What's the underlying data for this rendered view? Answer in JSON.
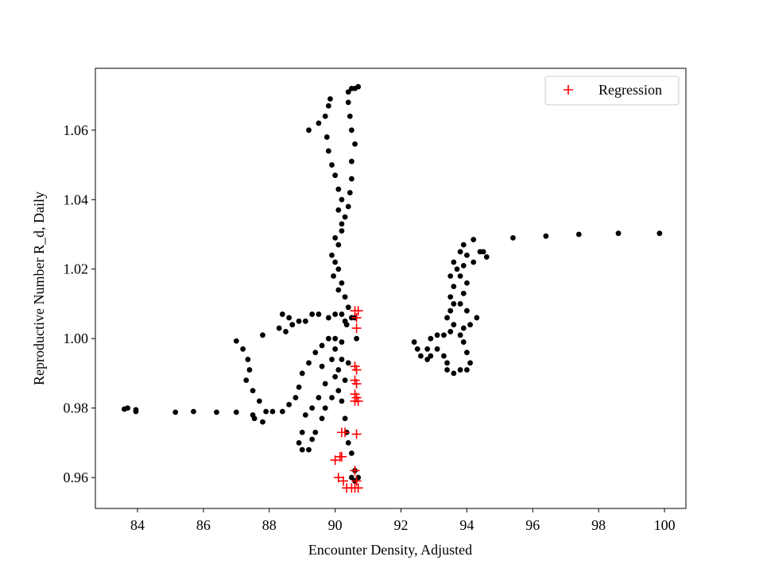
{
  "chart_data": {
    "type": "scatter",
    "xlabel": "Encounter Density, Adjusted",
    "ylabel": "Reproductive Number R_d, Daily",
    "xlim": [
      82.72,
      100.65
    ],
    "ylim": [
      0.9511,
      1.0778
    ],
    "xticks": [
      84,
      86,
      88,
      90,
      92,
      94,
      96,
      98,
      100
    ],
    "yticks": [
      0.96,
      0.98,
      {
        "value": 1,
        "label": "1.00"
      },
      1.02,
      1.04,
      1.06
    ],
    "legend": "upper right",
    "series": [
      {
        "color": "#000000",
        "marker": "dot",
        "x": [
          95.4,
          96.4,
          97.4,
          98.6,
          99.85,
          94.6,
          94.4,
          94.2,
          93.9,
          93.8,
          94.0,
          93.6,
          93.7,
          93.5,
          93.6,
          93.5,
          93.6,
          93.5,
          93.4,
          93.6,
          93.5,
          93.3,
          93.1,
          92.9,
          92.8,
          92.6,
          92.4,
          92.5,
          92.8,
          92.9,
          93.1,
          93.3,
          93.4,
          93.4,
          93.6,
          93.8,
          94.0,
          94.1,
          94.0,
          93.9,
          93.8,
          93.9,
          94.1,
          94.3,
          94.0,
          93.8,
          93.9,
          94.0,
          93.8,
          93.9,
          94.2,
          94.5,
          83.6,
          83.7,
          83.95,
          83.95,
          85.15,
          85.7,
          86.4,
          87.0,
          87.5,
          87.55,
          87.8,
          87.9,
          88.1,
          87.0,
          87.2,
          87.35,
          87.4,
          87.3,
          87.5,
          87.7,
          87.8,
          88.3,
          88.5,
          88.4,
          88.6,
          88.7,
          88.9,
          89.1,
          89.3,
          89.2,
          89.5,
          89.7,
          89.8,
          89.85,
          89.75,
          89.8,
          89.9,
          90.0,
          90.1,
          90.2,
          90.1,
          90.2,
          90.0,
          89.9,
          90.1,
          90.2,
          90.3,
          90.4,
          90.5,
          90.35,
          90.4,
          90.5,
          90.6,
          90.7,
          90.4,
          90.45,
          90.5,
          90.6,
          90.5,
          90.5,
          90.45,
          90.4,
          90.3,
          90.2,
          90.1,
          90.0,
          89.95,
          90.1,
          90.3,
          90.35,
          90.4,
          90.5,
          90.6,
          90.5,
          90.6,
          90.7,
          89.0,
          88.9,
          89.0,
          89.2,
          89.3,
          89.4,
          89.6,
          89.7,
          89.9,
          90.1,
          90.3,
          90.1,
          89.9,
          90.0,
          90.2,
          89.8,
          89.6,
          89.4,
          89.2,
          89.0,
          88.9,
          88.8,
          88.6,
          88.4,
          89.1,
          89.3,
          89.5,
          89.7,
          90.0,
          90.2,
          90.0,
          90.3,
          90.6,
          90.65,
          90.4,
          90.2,
          89.6,
          89.5,
          89.8,
          90.0,
          90.2
        ],
        "values": [
          1.029,
          1.0295,
          1.03,
          1.0303,
          1.0303,
          1.0235,
          1.025,
          1.0285,
          1.027,
          1.025,
          1.024,
          1.022,
          1.02,
          1.018,
          1.015,
          1.012,
          1.01,
          1.008,
          1.006,
          1.004,
          1.002,
          1.001,
          1.001,
          1.0,
          0.997,
          0.995,
          0.999,
          0.997,
          0.994,
          0.995,
          0.997,
          0.995,
          0.993,
          0.991,
          0.99,
          0.991,
          0.991,
          0.993,
          0.996,
          0.999,
          1.001,
          1.003,
          1.004,
          1.006,
          1.008,
          1.01,
          1.013,
          1.016,
          1.018,
          1.021,
          1.022,
          1.025,
          0.9797,
          0.98,
          0.9795,
          0.979,
          0.9788,
          0.979,
          0.9788,
          0.9788,
          0.978,
          0.977,
          0.976,
          0.979,
          0.979,
          0.9993,
          0.997,
          0.994,
          0.991,
          0.988,
          0.985,
          0.982,
          1.001,
          1.003,
          1.002,
          1.007,
          1.006,
          1.004,
          1.005,
          1.005,
          1.007,
          1.06,
          1.062,
          1.064,
          1.067,
          1.069,
          1.058,
          1.054,
          1.05,
          1.047,
          1.043,
          1.04,
          1.037,
          1.033,
          1.029,
          1.024,
          1.02,
          1.016,
          1.012,
          1.009,
          1.006,
          1.004,
          1.071,
          1.072,
          1.072,
          1.0725,
          1.068,
          1.064,
          1.06,
          1.056,
          1.051,
          1.046,
          1.042,
          1.038,
          1.035,
          1.031,
          1.027,
          1.022,
          1.018,
          1.014,
          0.977,
          0.973,
          0.97,
          0.967,
          0.962,
          0.96,
          0.959,
          0.96,
          0.973,
          0.97,
          0.968,
          0.968,
          0.971,
          0.973,
          0.977,
          0.98,
          0.983,
          0.985,
          0.988,
          0.991,
          0.994,
          0.997,
          0.999,
          1.0,
          0.998,
          0.996,
          0.993,
          0.99,
          0.986,
          0.983,
          0.981,
          0.979,
          0.978,
          0.98,
          0.983,
          0.987,
          0.989,
          0.994,
          1.0,
          1.005,
          1.006,
          1.0,
          0.993,
          0.982,
          0.992,
          1.007,
          1.006,
          1.007,
          1.007
        ]
      },
      {
        "name": "Regression",
        "color": "#ff0000",
        "marker": "plus",
        "x": [
          90.6,
          90.7,
          90.65,
          90.65,
          90.6,
          90.65,
          90.6,
          90.65,
          90.6,
          90.65,
          90.6,
          90.7,
          90.2,
          90.3,
          90.65,
          90.0,
          90.15,
          90.2,
          90.1,
          90.25,
          90.6,
          90.65,
          90.35,
          90.5,
          90.6,
          90.7
        ],
        "values": [
          1.008,
          1.008,
          1.006,
          1.003,
          0.992,
          0.991,
          0.988,
          0.987,
          0.984,
          0.983,
          0.982,
          0.982,
          0.973,
          0.973,
          0.9725,
          0.965,
          0.966,
          0.966,
          0.96,
          0.959,
          0.962,
          0.959,
          0.957,
          0.957,
          0.957,
          0.957
        ]
      }
    ]
  }
}
